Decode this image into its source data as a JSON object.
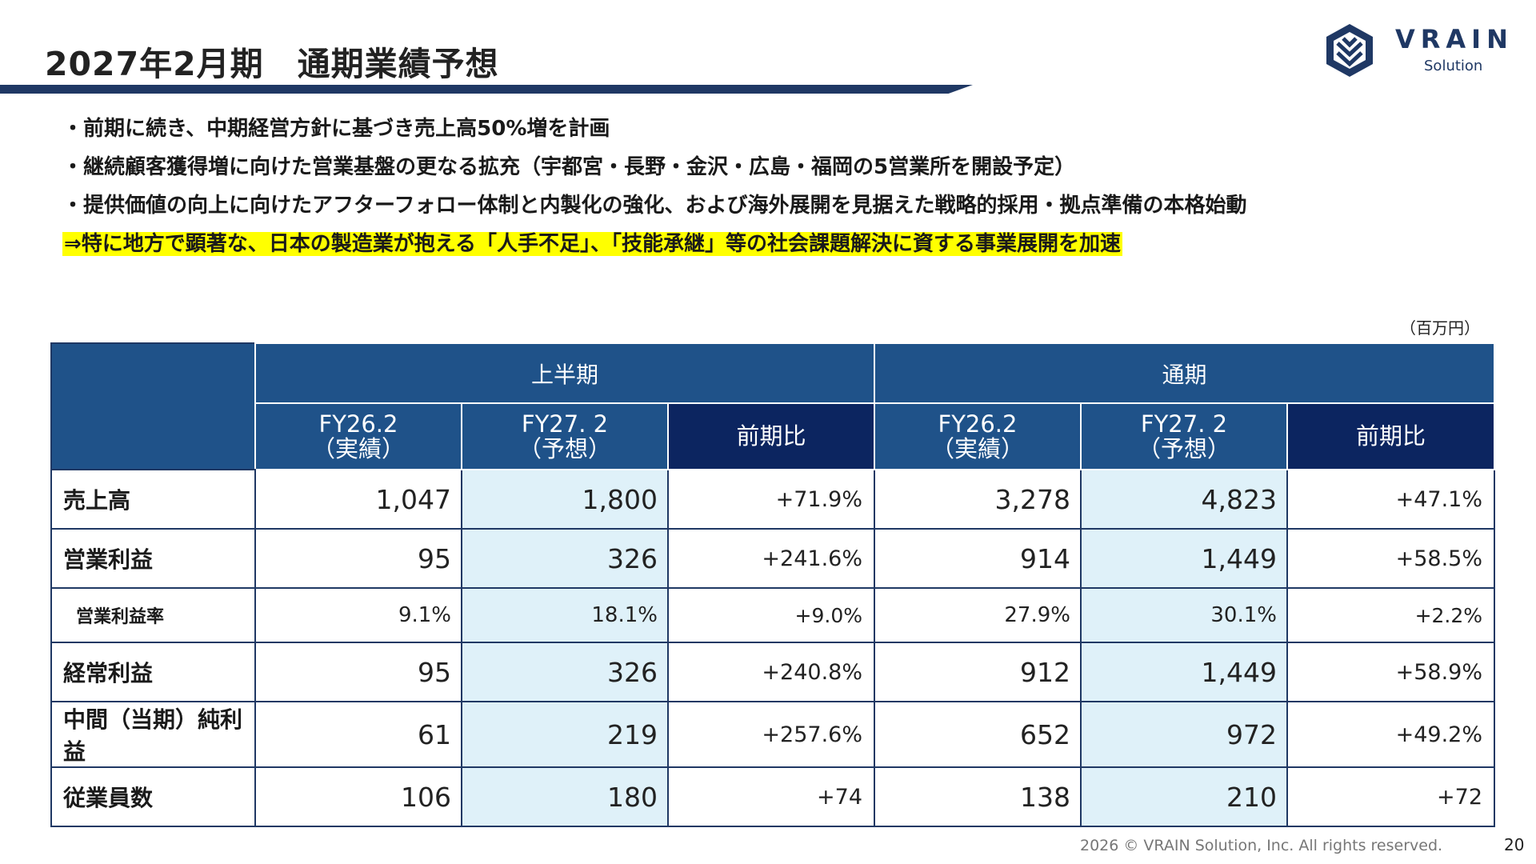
{
  "header": {
    "title": "2027年2月期　通期業績予想",
    "logo_text": "VRAIN",
    "logo_sub": "Solution"
  },
  "bullets": [
    "・前期に続き、中期経営方針に基づき売上高50%増を計画",
    "・継続顧客獲得増に向けた営業基盤の更なる拡充（宇都宮・長野・金沢・広島・福岡の5営業所を開設予定）",
    "・提供価値の向上に向けたアフターフォロー体制と内製化の強化、および海外展開を見据えた戦略的採用・拠点準備の本格始動"
  ],
  "highlight": "⇒特に地方で顕著な、日本の製造業が抱える「人手不足」、「技能承継」等の社会課題解決に資する事業展開を加速",
  "unit": "（百万円）",
  "table": {
    "groups": [
      "上半期",
      "通期"
    ],
    "subheaders": [
      {
        "fy": "FY26.2",
        "note": "（実績）"
      },
      {
        "fy": "FY27. 2",
        "note": "（予想）"
      },
      {
        "fy": "前期比",
        "note": ""
      },
      {
        "fy": "FY26.2",
        "note": "（実績）"
      },
      {
        "fy": "FY27. 2",
        "note": "（予想）"
      },
      {
        "fy": "前期比",
        "note": ""
      }
    ],
    "rows": [
      {
        "label": "売上高",
        "values": [
          "1,047",
          "1,800",
          "+71.9%",
          "3,278",
          "4,823",
          "+47.1%"
        ]
      },
      {
        "label": "営業利益",
        "values": [
          "95",
          "326",
          "+241.6%",
          "914",
          "1,449",
          "+58.5%"
        ]
      },
      {
        "label": "営業利益率",
        "values": [
          "9.1%",
          "18.1%",
          "+9.0%",
          "27.9%",
          "30.1%",
          "+2.2%"
        ]
      },
      {
        "label": "経常利益",
        "values": [
          "95",
          "326",
          "+240.8%",
          "912",
          "1,449",
          "+58.9%"
        ]
      },
      {
        "label": "中間（当期）純利益",
        "values": [
          "61",
          "219",
          "+257.6%",
          "652",
          "972",
          "+49.2%"
        ]
      },
      {
        "label": "従業員数",
        "values": [
          "106",
          "180",
          "+74",
          "138",
          "210",
          "+72"
        ]
      }
    ]
  },
  "footer": {
    "copyright": "2026 © VRAIN Solution, Inc. All rights reserved.",
    "page": "20"
  },
  "colors": {
    "header_blue": "#1f5289",
    "header_dark": "#0c2560",
    "forecast_fill": "#dff1f9",
    "highlight": "#ffff00"
  }
}
